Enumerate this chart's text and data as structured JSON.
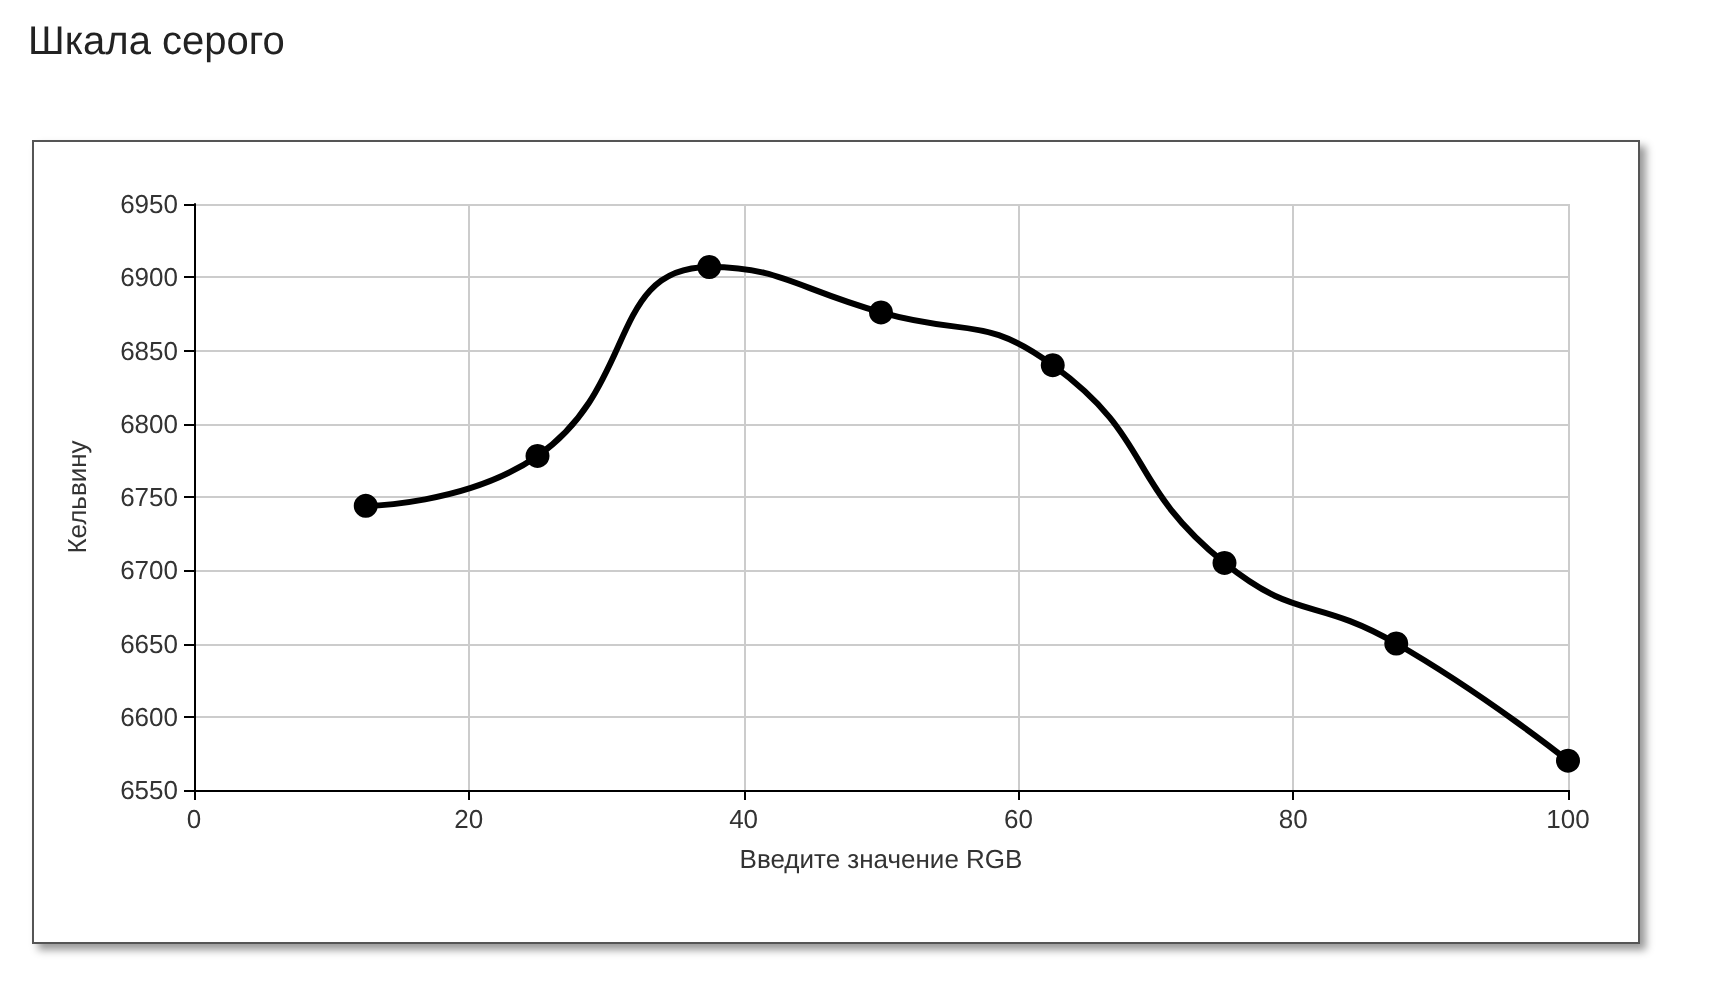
{
  "chart_data": {
    "type": "line",
    "title": "Шкала серого",
    "xlabel": "Введите значение RGB",
    "ylabel": "Кельвину",
    "x": [
      12.5,
      25,
      37.5,
      50,
      62.5,
      75,
      87.5,
      100
    ],
    "series": [
      {
        "color": "#000000",
        "values": [
          6744,
          6778,
          6907,
          6876,
          6840,
          6705,
          6650,
          6570
        ]
      }
    ],
    "xlim": [
      0,
      100
    ],
    "xticks": [
      0,
      20,
      40,
      60,
      80,
      100
    ],
    "ylim": [
      6550,
      6950
    ],
    "yticks": [
      6550,
      6600,
      6650,
      6700,
      6750,
      6800,
      6850,
      6900,
      6950
    ],
    "grid": true,
    "marker": "circle",
    "line_style": "solid"
  }
}
